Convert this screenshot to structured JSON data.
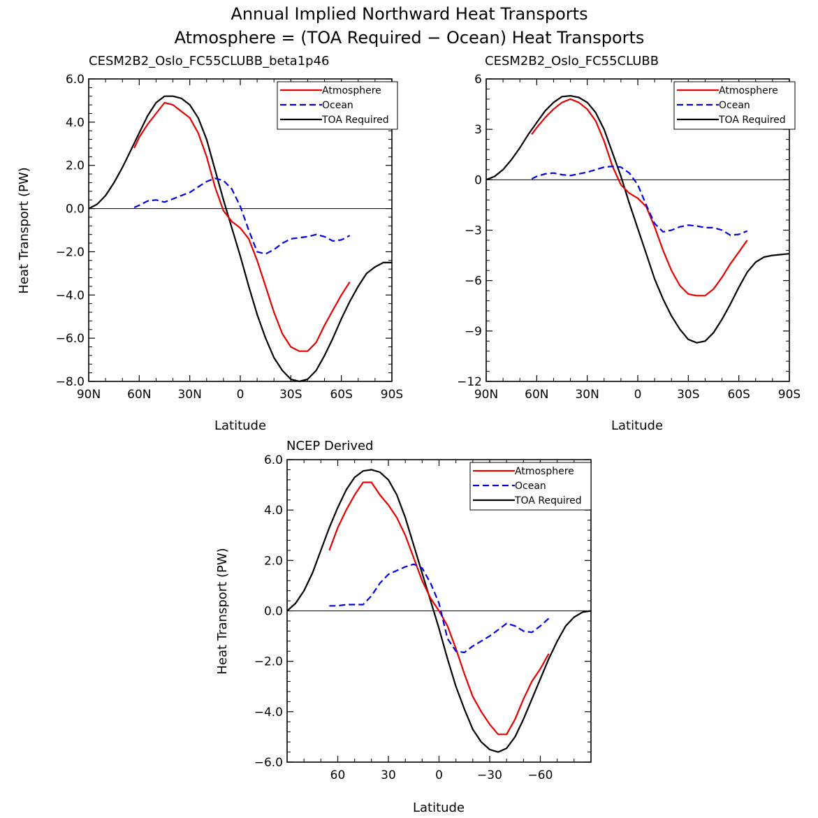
{
  "figure": {
    "title_line1": "Annual Implied Northward Heat Transports",
    "title_line2": "Atmosphere = (TOA Required − Ocean) Heat Transports"
  },
  "chart_data": [
    {
      "type": "line",
      "title": "CESM2B2_Oslo_FC55CLUBB_beta1p46",
      "xlabel": "Latitude",
      "ylabel": "Heat Transport (PW)",
      "xlim": [
        90,
        -90
      ],
      "ylim": [
        -8,
        6
      ],
      "xticks": [
        90,
        60,
        30,
        0,
        -30,
        -60,
        -90
      ],
      "xtick_labels": [
        "90N",
        "60N",
        "30N",
        "0",
        "30S",
        "60S",
        "90S"
      ],
      "yticks": [
        -8,
        -6,
        -4,
        -2,
        0,
        2,
        4,
        6
      ],
      "ytick_labels": [
        "−8.0",
        "−6.0",
        "−4.0",
        "−2.0",
        "0.0",
        "2.0",
        "4.0",
        "6.0"
      ],
      "legend": [
        "Atmosphere",
        "Ocean",
        "TOA Required"
      ],
      "colors": {
        "Atmosphere": "#e60000",
        "Ocean": "#0000e6",
        "TOA Required": "#000000"
      },
      "series": [
        {
          "name": "TOA Required",
          "x": [
            90,
            85,
            80,
            75,
            70,
            65,
            60,
            55,
            50,
            45,
            40,
            35,
            30,
            25,
            20,
            15,
            10,
            5,
            0,
            -5,
            -10,
            -15,
            -20,
            -25,
            -30,
            -35,
            -40,
            -45,
            -50,
            -55,
            -60,
            -65,
            -70,
            -75,
            -80,
            -85,
            -90
          ],
          "y": [
            0.0,
            0.2,
            0.6,
            1.2,
            1.9,
            2.7,
            3.5,
            4.3,
            4.9,
            5.2,
            5.2,
            5.1,
            4.8,
            4.2,
            3.2,
            1.8,
            0.4,
            -0.9,
            -2.2,
            -3.6,
            -4.9,
            -6.0,
            -6.9,
            -7.5,
            -7.9,
            -8.0,
            -7.9,
            -7.5,
            -6.8,
            -6.0,
            -5.1,
            -4.3,
            -3.6,
            -3.0,
            -2.7,
            -2.5,
            -2.5
          ]
        },
        {
          "name": "Atmosphere",
          "x": [
            63,
            60,
            55,
            50,
            45,
            40,
            35,
            30,
            25,
            20,
            15,
            10,
            5,
            0,
            -5,
            -10,
            -15,
            -20,
            -25,
            -30,
            -35,
            -40,
            -45,
            -50,
            -55,
            -60,
            -65
          ],
          "y": [
            2.8,
            3.3,
            3.9,
            4.4,
            4.9,
            4.8,
            4.5,
            4.2,
            3.5,
            2.4,
            1.0,
            -0.1,
            -0.6,
            -0.9,
            -1.4,
            -2.4,
            -3.6,
            -4.8,
            -5.8,
            -6.4,
            -6.6,
            -6.6,
            -6.2,
            -5.4,
            -4.7,
            -4.0,
            -3.4
          ]
        },
        {
          "name": "Ocean",
          "x": [
            63,
            60,
            55,
            50,
            45,
            40,
            35,
            30,
            25,
            20,
            15,
            10,
            5,
            0,
            -5,
            -10,
            -15,
            -20,
            -25,
            -30,
            -35,
            -40,
            -45,
            -50,
            -55,
            -60,
            -65
          ],
          "y": [
            0.05,
            0.15,
            0.35,
            0.4,
            0.3,
            0.45,
            0.6,
            0.75,
            1.0,
            1.25,
            1.4,
            1.3,
            0.9,
            0.1,
            -1.0,
            -2.0,
            -2.1,
            -1.9,
            -1.6,
            -1.4,
            -1.35,
            -1.3,
            -1.2,
            -1.3,
            -1.5,
            -1.45,
            -1.25
          ]
        }
      ]
    },
    {
      "type": "line",
      "title": "CESM2B2_Oslo_FC55CLUBB",
      "xlabel": "Latitude",
      "ylabel": "",
      "xlim": [
        90,
        -90
      ],
      "ylim": [
        -12,
        6
      ],
      "xticks": [
        90,
        60,
        30,
        0,
        -30,
        -60,
        -90
      ],
      "xtick_labels": [
        "90N",
        "60N",
        "30N",
        "0",
        "30S",
        "60S",
        "90S"
      ],
      "yticks": [
        -12,
        -9,
        -6,
        -3,
        0,
        3,
        6
      ],
      "ytick_labels": [
        "−12",
        "−9",
        "−6",
        "−3",
        "0",
        "3",
        "6"
      ],
      "legend": [
        "Atmosphere",
        "Ocean",
        "TOA Required"
      ],
      "colors": {
        "Atmosphere": "#e60000",
        "Ocean": "#0000e6",
        "TOA Required": "#000000"
      },
      "series": [
        {
          "name": "TOA Required",
          "x": [
            90,
            85,
            80,
            75,
            70,
            65,
            60,
            55,
            50,
            45,
            40,
            35,
            30,
            25,
            20,
            15,
            10,
            5,
            0,
            -5,
            -10,
            -15,
            -20,
            -25,
            -30,
            -35,
            -40,
            -45,
            -50,
            -55,
            -60,
            -65,
            -70,
            -75,
            -80,
            -85,
            -90
          ],
          "y": [
            0.0,
            0.2,
            0.6,
            1.2,
            1.9,
            2.7,
            3.4,
            4.1,
            4.6,
            4.95,
            5.0,
            4.9,
            4.6,
            4.0,
            3.0,
            1.6,
            0.2,
            -1.4,
            -2.9,
            -4.4,
            -5.9,
            -7.1,
            -8.1,
            -8.9,
            -9.5,
            -9.7,
            -9.6,
            -9.1,
            -8.3,
            -7.4,
            -6.4,
            -5.5,
            -4.9,
            -4.6,
            -4.5,
            -4.45,
            -4.4
          ]
        },
        {
          "name": "Atmosphere",
          "x": [
            63,
            60,
            55,
            50,
            45,
            40,
            35,
            30,
            25,
            20,
            15,
            10,
            5,
            0,
            -5,
            -10,
            -15,
            -20,
            -25,
            -30,
            -35,
            -40,
            -45,
            -50,
            -55,
            -60,
            -65
          ],
          "y": [
            2.7,
            3.1,
            3.7,
            4.2,
            4.6,
            4.8,
            4.6,
            4.2,
            3.5,
            2.3,
            0.8,
            -0.3,
            -0.8,
            -1.1,
            -1.6,
            -2.8,
            -4.2,
            -5.4,
            -6.3,
            -6.8,
            -6.9,
            -6.9,
            -6.5,
            -5.8,
            -5.0,
            -4.3,
            -3.6
          ]
        },
        {
          "name": "Ocean",
          "x": [
            63,
            60,
            55,
            50,
            45,
            40,
            35,
            30,
            25,
            20,
            15,
            10,
            5,
            0,
            -5,
            -10,
            -15,
            -20,
            -25,
            -30,
            -35,
            -40,
            -45,
            -50,
            -55,
            -60,
            -65
          ],
          "y": [
            0.05,
            0.2,
            0.35,
            0.4,
            0.3,
            0.25,
            0.35,
            0.45,
            0.6,
            0.75,
            0.8,
            0.75,
            0.4,
            -0.3,
            -1.5,
            -2.6,
            -3.1,
            -3.0,
            -2.8,
            -2.7,
            -2.75,
            -2.85,
            -2.85,
            -3.0,
            -3.3,
            -3.25,
            -3.05
          ]
        }
      ]
    },
    {
      "type": "line",
      "title": "NCEP Derived",
      "xlabel": "Latitude",
      "ylabel": "Heat Transport (PW)",
      "xlim": [
        90,
        -90
      ],
      "ylim": [
        -6,
        6
      ],
      "xticks": [
        60,
        30,
        0,
        -30,
        -60
      ],
      "xtick_labels": [
        "60",
        "30",
        "0",
        "−30",
        "−60"
      ],
      "yticks": [
        -6,
        -4,
        -2,
        0,
        2,
        4,
        6
      ],
      "ytick_labels": [
        "−6.0",
        "−4.0",
        "−2.0",
        "0.0",
        "2.0",
        "4.0",
        "6.0"
      ],
      "legend": [
        "Atmosphere",
        "Ocean",
        "TOA Required"
      ],
      "colors": {
        "Atmosphere": "#e60000",
        "Ocean": "#0000e6",
        "TOA Required": "#000000"
      },
      "series": [
        {
          "name": "TOA Required",
          "x": [
            90,
            85,
            80,
            75,
            70,
            65,
            60,
            55,
            50,
            45,
            40,
            35,
            30,
            25,
            20,
            15,
            10,
            5,
            0,
            -5,
            -10,
            -15,
            -20,
            -25,
            -30,
            -35,
            -40,
            -45,
            -50,
            -55,
            -60,
            -65,
            -70,
            -75,
            -80,
            -85,
            -90
          ],
          "y": [
            0.0,
            0.3,
            0.8,
            1.5,
            2.4,
            3.3,
            4.1,
            4.8,
            5.3,
            5.55,
            5.6,
            5.5,
            5.2,
            4.6,
            3.7,
            2.6,
            1.5,
            0.4,
            -0.7,
            -1.9,
            -3.0,
            -3.9,
            -4.7,
            -5.2,
            -5.5,
            -5.6,
            -5.45,
            -5.0,
            -4.3,
            -3.5,
            -2.7,
            -1.9,
            -1.2,
            -0.6,
            -0.25,
            -0.05,
            0.0
          ]
        },
        {
          "name": "Atmosphere",
          "x": [
            65,
            60,
            55,
            50,
            45,
            40,
            35,
            30,
            25,
            20,
            15,
            10,
            5,
            0,
            -5,
            -10,
            -15,
            -20,
            -25,
            -30,
            -35,
            -40,
            -45,
            -50,
            -55,
            -60,
            -65
          ],
          "y": [
            2.4,
            3.3,
            4.0,
            4.6,
            5.1,
            5.1,
            4.6,
            4.2,
            3.7,
            3.0,
            2.1,
            1.2,
            0.5,
            0.0,
            -0.6,
            -1.5,
            -2.5,
            -3.4,
            -4.0,
            -4.5,
            -4.9,
            -4.9,
            -4.3,
            -3.5,
            -2.8,
            -2.3,
            -1.7
          ]
        },
        {
          "name": "Ocean",
          "x": [
            65,
            60,
            55,
            50,
            45,
            40,
            35,
            30,
            25,
            20,
            15,
            10,
            5,
            0,
            -5,
            -10,
            -15,
            -20,
            -25,
            -30,
            -35,
            -40,
            -45,
            -50,
            -55,
            -60,
            -65
          ],
          "y": [
            0.2,
            0.2,
            0.25,
            0.25,
            0.25,
            0.6,
            1.1,
            1.45,
            1.6,
            1.75,
            1.85,
            1.7,
            1.1,
            0.3,
            -1.1,
            -1.6,
            -1.65,
            -1.4,
            -1.2,
            -1.0,
            -0.75,
            -0.5,
            -0.6,
            -0.8,
            -0.85,
            -0.6,
            -0.3
          ]
        }
      ]
    }
  ]
}
